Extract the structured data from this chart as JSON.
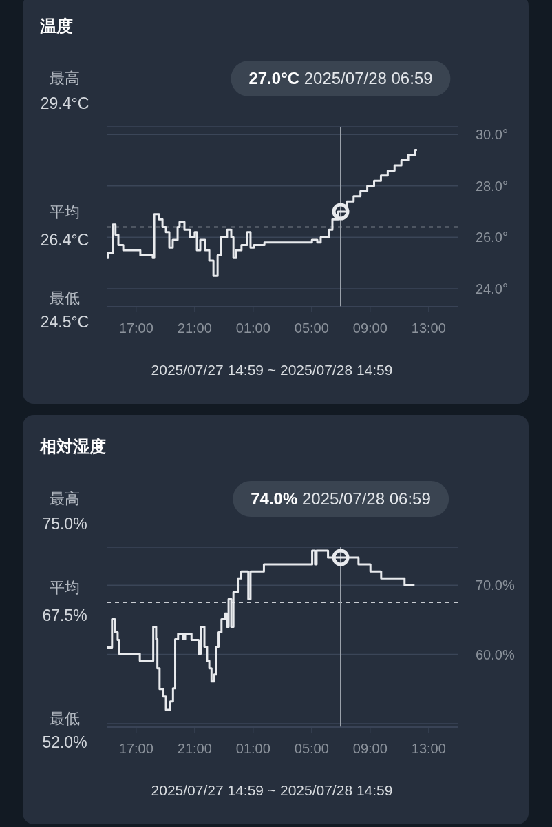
{
  "chart_data": [
    {
      "type": "step",
      "title": "温度",
      "xlabel": "2025/07/27 14:59 ~ 2025/07/28 14:59",
      "grid": "y",
      "series": [
        {
          "color": "#e8eaed",
          "x": [
            "2025-07-27T14:59",
            "2025-07-27T15:05",
            "2025-07-27T15:24",
            "2025-07-27T15:35",
            "2025-07-27T15:47",
            "2025-07-27T16:07",
            "2025-07-27T17:17",
            "2025-07-27T18:08",
            "2025-07-27T18:14",
            "2025-07-27T18:34",
            "2025-07-27T18:48",
            "2025-07-27T19:02",
            "2025-07-27T19:16",
            "2025-07-27T19:30",
            "2025-07-27T19:50",
            "2025-07-27T19:58",
            "2025-07-27T20:18",
            "2025-07-27T20:41",
            "2025-07-27T21:00",
            "2025-07-27T21:09",
            "2025-07-27T21:23",
            "2025-07-27T21:43",
            "2025-07-27T22:00",
            "2025-07-27T22:17",
            "2025-07-27T22:34",
            "2025-07-27T22:48",
            "2025-07-27T23:13",
            "2025-07-27T23:30",
            "2025-07-27T23:39",
            "2025-07-27T23:50",
            "2025-07-28T00:12",
            "2025-07-28T00:35",
            "2025-07-28T00:49",
            "2025-07-28T01:03",
            "2025-07-28T01:46",
            "2025-07-28T05:01",
            "2025-07-28T05:23",
            "2025-07-28T05:37",
            "2025-07-28T06:11",
            "2025-07-28T06:25",
            "2025-07-28T06:48",
            "2025-07-28T07:24",
            "2025-07-28T07:52",
            "2025-07-28T08:20",
            "2025-07-28T08:48",
            "2025-07-28T09:16",
            "2025-07-28T09:44",
            "2025-07-28T10:12",
            "2025-07-28T10:40",
            "2025-07-28T11:08",
            "2025-07-28T11:36",
            "2025-07-28T12:04",
            "2025-07-28T12:12"
          ],
          "values": [
            25.2,
            25.4,
            26.5,
            26.1,
            25.7,
            25.5,
            25.3,
            25.2,
            26.9,
            26.7,
            26.4,
            26.2,
            25.6,
            25.9,
            26.4,
            26.6,
            26.3,
            26.0,
            26.2,
            25.5,
            25.9,
            25.5,
            25.1,
            24.5,
            25.3,
            26.0,
            26.3,
            26.0,
            25.2,
            25.5,
            25.7,
            26.2,
            25.6,
            25.7,
            25.8,
            25.9,
            25.8,
            26.0,
            26.3,
            26.7,
            27.0,
            27.4,
            27.6,
            27.8,
            28.0,
            28.2,
            28.4,
            28.6,
            28.8,
            29.0,
            29.2,
            29.4,
            29.4
          ]
        },
        {
          "type": "scatter",
          "marker": "circle",
          "color": "#e8eaed",
          "x": [
            "2025-07-28T06:59"
          ],
          "values": [
            27.0
          ]
        }
      ],
      "xlim": [
        "2025-07-27T14:59",
        "2025-07-28T14:59"
      ],
      "xticks": [
        {
          "value": "2025-07-27T17:00",
          "label": "17:00"
        },
        {
          "value": "2025-07-27T21:00",
          "label": "21:00"
        },
        {
          "value": "2025-07-28T01:00",
          "label": "01:00"
        },
        {
          "value": "2025-07-28T05:00",
          "label": "05:00"
        },
        {
          "value": "2025-07-28T09:00",
          "label": "09:00"
        },
        {
          "value": "2025-07-28T13:00",
          "label": "13:00"
        }
      ],
      "ylim": [
        23.3,
        30.3
      ],
      "yticks": [
        {
          "value": 24,
          "label": "24.0°"
        },
        {
          "value": 26,
          "label": "26.0°"
        },
        {
          "value": 28,
          "label": "28.0°"
        },
        {
          "value": 30,
          "label": "30.0°"
        }
      ],
      "ref_lines": [
        {
          "axis": "y",
          "value": 26.4,
          "color": "#c8ccd2",
          "line_style": "dashed"
        },
        {
          "axis": "x",
          "value": "2025-07-28T06:59",
          "color": "#9aa1aa",
          "line_style": "solid"
        }
      ],
      "annotations": [
        "最高",
        "29.4°C",
        "平均",
        "26.4°C",
        "最低",
        "24.5°C",
        "27.0°C 2025/07/28 06:59"
      ]
    },
    {
      "type": "step",
      "title": "相対湿度",
      "xlabel": "2025/07/27 14:59 ~ 2025/07/28 14:59",
      "grid": "y",
      "series": [
        {
          "color": "#e8eaed",
          "x": [
            "2025-07-27T14:59",
            "2025-07-27T15:21",
            "2025-07-27T15:33",
            "2025-07-27T15:44",
            "2025-07-27T15:50",
            "2025-07-27T17:15",
            "2025-07-27T18:10",
            "2025-07-27T18:22",
            "2025-07-27T18:27",
            "2025-07-27T18:36",
            "2025-07-27T18:51",
            "2025-07-27T19:02",
            "2025-07-27T19:20",
            "2025-07-27T19:31",
            "2025-07-27T19:40",
            "2025-07-27T19:52",
            "2025-07-27T20:12",
            "2025-07-27T20:21",
            "2025-07-27T20:47",
            "2025-07-27T21:16",
            "2025-07-27T21:25",
            "2025-07-27T21:40",
            "2025-07-27T21:51",
            "2025-07-27T22:00",
            "2025-07-27T22:09",
            "2025-07-27T22:20",
            "2025-07-27T22:29",
            "2025-07-27T22:38",
            "2025-07-27T22:50",
            "2025-07-27T23:04",
            "2025-07-27T23:13",
            "2025-07-27T23:19",
            "2025-07-27T23:30",
            "2025-07-27T23:39",
            "2025-07-27T23:57",
            "2025-07-28T00:11",
            "2025-07-28T00:40",
            "2025-07-28T00:49",
            "2025-07-28T01:44",
            "2025-07-28T05:02",
            "2025-07-28T05:14",
            "2025-07-28T05:20",
            "2025-07-28T06:07",
            "2025-07-28T08:12",
            "2025-07-28T09:01",
            "2025-07-28T09:45",
            "2025-07-28T11:21",
            "2025-07-28T12:02"
          ],
          "values": [
            61.0,
            65.1,
            63.2,
            62.1,
            60.1,
            59.1,
            64.0,
            62.2,
            58.0,
            55.0,
            53.9,
            52.0,
            53.2,
            55.1,
            62.2,
            63.0,
            62.2,
            63.0,
            62.1,
            60.1,
            64.0,
            61.1,
            59.1,
            58.0,
            56.1,
            57.1,
            61.1,
            63.2,
            65.1,
            65.9,
            64.0,
            68.0,
            64.0,
            69.0,
            71.0,
            72.0,
            68.0,
            72.0,
            73.0,
            75.0,
            73.0,
            75.0,
            74.0,
            73.0,
            72.0,
            71.0,
            70.0,
            70.0
          ]
        },
        {
          "type": "scatter",
          "marker": "circle",
          "color": "#e8eaed",
          "x": [
            "2025-07-28T06:59"
          ],
          "values": [
            74.0
          ]
        }
      ],
      "xlim": [
        "2025-07-27T14:59",
        "2025-07-28T14:59"
      ],
      "xticks": [
        {
          "value": "2025-07-27T17:00",
          "label": "17:00"
        },
        {
          "value": "2025-07-27T21:00",
          "label": "21:00"
        },
        {
          "value": "2025-07-28T01:00",
          "label": "01:00"
        },
        {
          "value": "2025-07-28T05:00",
          "label": "05:00"
        },
        {
          "value": "2025-07-28T09:00",
          "label": "09:00"
        },
        {
          "value": "2025-07-28T13:00",
          "label": "13:00"
        }
      ],
      "ylim": [
        49.5,
        75.5
      ],
      "yticks": [
        {
          "value": 50,
          "label": null
        },
        {
          "value": 60,
          "label": "60.0%"
        },
        {
          "value": 70,
          "label": "70.0%"
        }
      ],
      "ref_lines": [
        {
          "axis": "y",
          "value": 67.5,
          "color": "#c8ccd2",
          "line_style": "dashed"
        },
        {
          "axis": "x",
          "value": "2025-07-28T06:59",
          "color": "#9aa1aa",
          "line_style": "solid"
        }
      ],
      "annotations": [
        "最高",
        "75.0%",
        "平均",
        "67.5%",
        "最低",
        "52.0%",
        "74.0% 2025/07/28 06:59"
      ]
    }
  ]
}
